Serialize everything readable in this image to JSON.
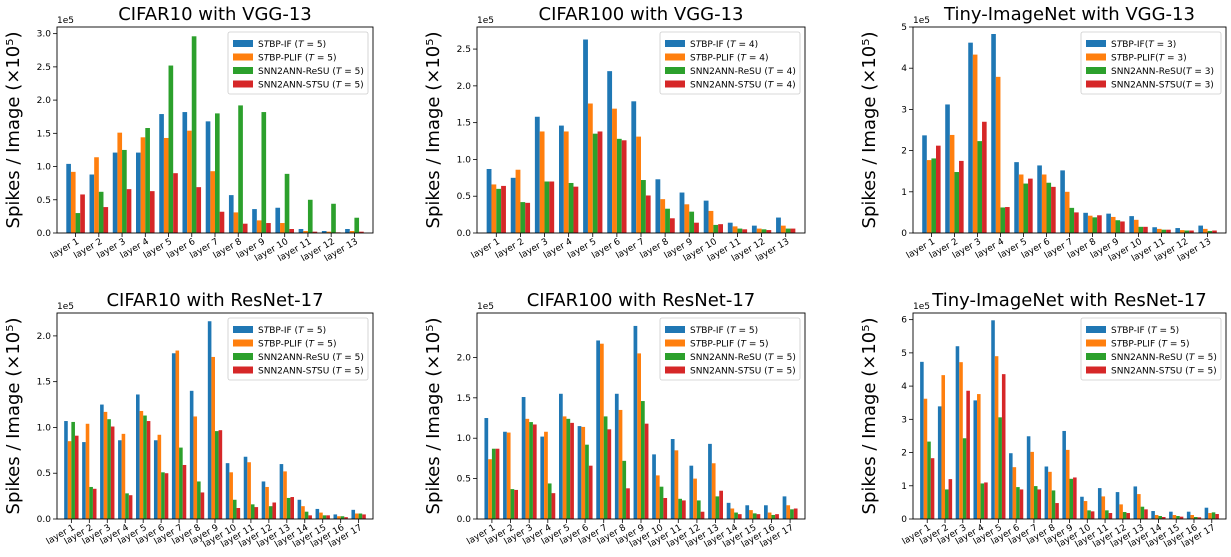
{
  "figure": {
    "colors": {
      "STBP-IF": "#1f77b4",
      "STBP-PLIF": "#ff7f0e",
      "SNN2ANN-ReSU": "#2ca02c",
      "SNN2ANN-STSU": "#d62728"
    }
  },
  "chart_data": [
    {
      "type": "bar",
      "title": "CIFAR10 with VGG-13",
      "ylabel": "Spikes / Image (×10⁵)",
      "offset_text": "1e5",
      "ylim": [
        0,
        3.1
      ],
      "yticks": [
        "0.0",
        "0.5",
        "1.0",
        "1.5",
        "2.0",
        "2.5",
        "3.0"
      ],
      "legend_position": "top-right",
      "categories": [
        "layer 1",
        "layer 2",
        "layer 3",
        "layer 4",
        "layer 5",
        "layer 6",
        "layer 7",
        "layer 8",
        "layer 9",
        "layer 10",
        "layer 11",
        "layer 12",
        "layer 13"
      ],
      "series": [
        {
          "name": "STBP-IF (T = 5)",
          "values": [
            1.04,
            0.88,
            1.21,
            1.21,
            1.79,
            1.82,
            1.68,
            0.57,
            0.36,
            0.38,
            0.06,
            0.03,
            0.06
          ]
        },
        {
          "name": "STBP-PLIF (T = 5)",
          "values": [
            0.92,
            1.14,
            1.51,
            1.44,
            1.43,
            1.54,
            0.93,
            0.31,
            0.19,
            0.15,
            0.03,
            0.02,
            0.03
          ]
        },
        {
          "name": "SNN2ANN-ReSU (T = 5)",
          "values": [
            0.3,
            0.62,
            1.25,
            1.58,
            2.52,
            2.96,
            1.8,
            1.92,
            1.82,
            0.89,
            0.5,
            0.44,
            0.23
          ]
        },
        {
          "name": "SNN2ANN-STSU (T = 5)",
          "values": [
            0.58,
            0.39,
            0.66,
            0.63,
            0.9,
            0.69,
            0.32,
            0.14,
            0.15,
            0.06,
            0.02,
            0.01,
            0.02
          ]
        }
      ]
    },
    {
      "type": "bar",
      "title": "CIFAR100 with VGG-13",
      "ylabel": "Spikes / Image (×10⁵)",
      "offset_text": "1e5",
      "ylim": [
        0,
        2.8
      ],
      "yticks": [
        "0.0",
        "0.5",
        "1.0",
        "1.5",
        "2.0",
        "2.5"
      ],
      "legend_position": "top-right",
      "categories": [
        "layer 1",
        "layer 2",
        "layer 3",
        "layer 4",
        "layer 5",
        "layer 6",
        "layer 7",
        "layer 8",
        "layer 9",
        "layer 10",
        "layer 11",
        "layer 12",
        "layer 13"
      ],
      "series": [
        {
          "name": "STBP-IF (T = 4)",
          "values": [
            0.87,
            0.75,
            1.58,
            1.46,
            2.63,
            2.2,
            1.79,
            0.73,
            0.55,
            0.44,
            0.14,
            0.1,
            0.21
          ]
        },
        {
          "name": "STBP-PLIF (T = 4)",
          "values": [
            0.66,
            0.86,
            1.38,
            1.38,
            1.76,
            1.69,
            1.31,
            0.46,
            0.39,
            0.3,
            0.09,
            0.06,
            0.1
          ]
        },
        {
          "name": "SNN2ANN-ReSU (T = 4)",
          "values": [
            0.6,
            0.42,
            0.7,
            0.68,
            1.35,
            1.28,
            0.72,
            0.33,
            0.29,
            0.11,
            0.06,
            0.05,
            0.06
          ]
        },
        {
          "name": "SNN2ANN-STSU (T = 4)",
          "values": [
            0.64,
            0.41,
            0.7,
            0.63,
            1.38,
            1.26,
            0.51,
            0.2,
            0.14,
            0.12,
            0.05,
            0.04,
            0.06
          ]
        }
      ]
    },
    {
      "type": "bar",
      "title": "Tiny-ImageNet with VGG-13",
      "ylabel": "Spikes / Image (×10⁵)",
      "offset_text": "1e5",
      "ylim": [
        0,
        5.0
      ],
      "yticks": [
        "0",
        "1",
        "2",
        "3",
        "4",
        "5"
      ],
      "legend_position": "top-right",
      "categories": [
        "layer 1",
        "layer 2",
        "layer 3",
        "layer 4",
        "layer 5",
        "layer 6",
        "layer 7",
        "layer 8",
        "layer 9",
        "layer 10",
        "layer 11",
        "layer 12",
        "layer 13"
      ],
      "series": [
        {
          "name": "STBP-IF(T = 3)",
          "values": [
            2.37,
            3.12,
            4.62,
            4.83,
            1.72,
            1.64,
            1.52,
            0.49,
            0.47,
            0.41,
            0.14,
            0.12,
            0.18
          ]
        },
        {
          "name": "STBP-PLIF(T = 3)",
          "values": [
            1.77,
            2.38,
            4.33,
            3.79,
            1.42,
            1.42,
            1.0,
            0.42,
            0.39,
            0.32,
            0.1,
            0.07,
            0.1
          ]
        },
        {
          "name": "SNN2ANN-ReSU(T = 3)",
          "values": [
            1.81,
            1.48,
            2.23,
            0.62,
            1.2,
            1.22,
            0.61,
            0.38,
            0.31,
            0.15,
            0.08,
            0.06,
            0.05
          ]
        },
        {
          "name": "SNN2ANN-STSU(T = 3)",
          "values": [
            2.12,
            1.75,
            2.7,
            0.63,
            1.32,
            1.12,
            0.5,
            0.43,
            0.28,
            0.15,
            0.08,
            0.06,
            0.06
          ]
        }
      ]
    },
    {
      "type": "bar",
      "title": "CIFAR10 with ResNet-17",
      "ylabel": "Spikes / Image (×10⁵)",
      "offset_text": "1e5",
      "ylim": [
        0,
        2.25
      ],
      "yticks": [
        "0.0",
        "0.5",
        "1.0",
        "1.5",
        "2.0"
      ],
      "legend_position": "top-right",
      "categories": [
        "layer 1",
        "layer 2",
        "layer 3",
        "layer 4",
        "layer 5",
        "layer 6",
        "layer 7",
        "layer 8",
        "layer 9",
        "layer 10",
        "layer 11",
        "layer 12",
        "layer 13",
        "layer 14",
        "layer 15",
        "layer 16",
        "layer 17"
      ],
      "series": [
        {
          "name": "STBP-IF (T = 5)",
          "values": [
            1.07,
            0.84,
            1.25,
            0.86,
            1.36,
            0.86,
            1.81,
            1.4,
            2.16,
            0.61,
            0.68,
            0.41,
            0.6,
            0.21,
            0.11,
            0.05,
            0.1
          ]
        },
        {
          "name": "STBP-PLIF (T = 5)",
          "values": [
            0.85,
            1.04,
            1.17,
            0.93,
            1.18,
            0.92,
            1.84,
            1.12,
            1.77,
            0.51,
            0.62,
            0.35,
            0.52,
            0.14,
            0.07,
            0.03,
            0.06
          ]
        },
        {
          "name": "SNN2ANN-ReSU (T = 5)",
          "values": [
            1.06,
            0.35,
            1.09,
            0.28,
            1.13,
            0.51,
            0.78,
            0.41,
            0.96,
            0.21,
            0.16,
            0.14,
            0.23,
            0.08,
            0.04,
            0.03,
            0.06
          ]
        },
        {
          "name": "SNN2ANN-STSU (T = 5)",
          "values": [
            0.91,
            0.33,
            1.01,
            0.26,
            1.07,
            0.5,
            0.59,
            0.29,
            0.97,
            0.12,
            0.13,
            0.18,
            0.24,
            0.04,
            0.04,
            0.02,
            0.05
          ]
        }
      ]
    },
    {
      "type": "bar",
      "title": "CIFAR100 with ResNet-17",
      "ylabel": "Spikes / Image (×10⁵)",
      "offset_text": "1e5",
      "ylim": [
        0,
        2.55
      ],
      "yticks": [
        "0.0",
        "0.5",
        "1.0",
        "1.5",
        "2.0"
      ],
      "legend_position": "top-right",
      "categories": [
        "layer 1",
        "layer 2",
        "layer 3",
        "layer 4",
        "layer 5",
        "layer 6",
        "layer 7",
        "layer 8",
        "layer 9",
        "layer 10",
        "layer 11",
        "layer 12",
        "layer 13",
        "layer 14",
        "layer 15",
        "layer 16",
        "layer 17"
      ],
      "series": [
        {
          "name": "STBP-IF (T = 5)",
          "values": [
            1.25,
            1.08,
            1.51,
            1.02,
            1.55,
            1.15,
            2.21,
            1.55,
            2.39,
            0.8,
            0.99,
            0.66,
            0.93,
            0.2,
            0.17,
            0.17,
            0.28
          ]
        },
        {
          "name": "STBP-PLIF (T = 5)",
          "values": [
            0.74,
            1.07,
            1.24,
            1.08,
            1.27,
            1.14,
            2.17,
            1.35,
            2.05,
            0.54,
            0.85,
            0.5,
            0.69,
            0.13,
            0.11,
            0.08,
            0.17
          ]
        },
        {
          "name": "SNN2ANN-ReSU (T = 5)",
          "values": [
            0.87,
            0.37,
            1.2,
            0.44,
            1.24,
            0.92,
            1.27,
            0.72,
            1.46,
            0.4,
            0.25,
            0.23,
            0.28,
            0.08,
            0.07,
            0.05,
            0.12
          ]
        },
        {
          "name": "SNN2ANN-STSU (T = 5)",
          "values": [
            0.87,
            0.36,
            1.17,
            0.32,
            1.19,
            0.66,
            1.11,
            0.38,
            1.18,
            0.26,
            0.23,
            0.09,
            0.35,
            0.06,
            0.06,
            0.06,
            0.13
          ]
        }
      ]
    },
    {
      "type": "bar",
      "title": "Tiny-ImageNet with ResNet-17",
      "ylabel": "Spikes / Image (×10⁵)",
      "offset_text": "1e5",
      "ylim": [
        0,
        6.2
      ],
      "yticks": [
        "0",
        "1",
        "2",
        "3",
        "4",
        "5",
        "6"
      ],
      "legend_position": "top-right",
      "categories": [
        "layer 1",
        "layer 2",
        "layer 3",
        "layer 4",
        "layer 5",
        "layer 6",
        "layer 7",
        "layer 8",
        "layer 9",
        "layer 10",
        "layer 11",
        "layer 12",
        "layer 13",
        "layer 14",
        "layer 15",
        "layer 16",
        "layer 17"
      ],
      "series": [
        {
          "name": "STBP-IF (T = 5)",
          "values": [
            4.73,
            3.39,
            5.2,
            3.57,
            5.98,
            1.98,
            2.49,
            1.58,
            2.65,
            0.67,
            0.93,
            0.81,
            0.98,
            0.24,
            0.22,
            0.22,
            0.34
          ]
        },
        {
          "name": "STBP-PLIF (T = 5)",
          "values": [
            3.62,
            4.33,
            4.72,
            3.76,
            4.9,
            1.56,
            2.02,
            1.42,
            2.08,
            0.54,
            0.68,
            0.44,
            0.75,
            0.12,
            0.12,
            0.12,
            0.18
          ]
        },
        {
          "name": "SNN2ANN-ReSU (T = 5)",
          "values": [
            2.33,
            0.89,
            2.43,
            1.07,
            3.06,
            0.96,
            0.99,
            0.86,
            1.21,
            0.26,
            0.26,
            0.21,
            0.37,
            0.09,
            0.09,
            0.06,
            0.2
          ]
        },
        {
          "name": "SNN2ANN-STSU (T = 5)",
          "values": [
            1.83,
            1.2,
            3.86,
            1.1,
            4.36,
            0.89,
            0.89,
            0.48,
            1.25,
            0.23,
            0.18,
            0.18,
            0.29,
            0.06,
            0.07,
            0.05,
            0.15
          ]
        }
      ]
    }
  ]
}
